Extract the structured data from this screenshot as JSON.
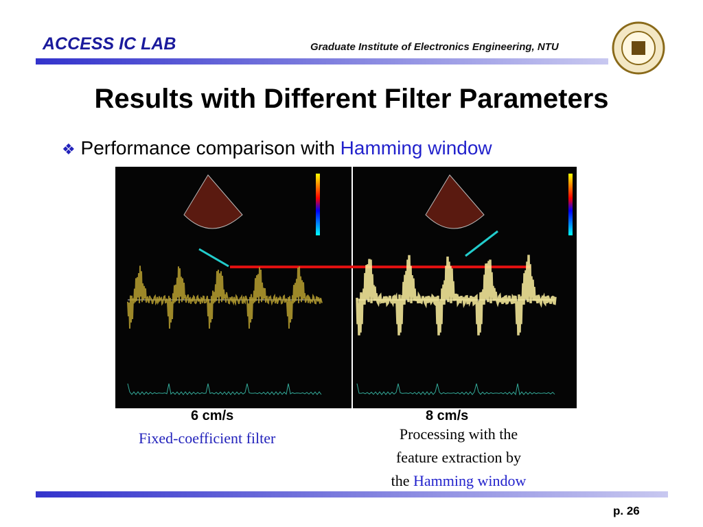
{
  "header": {
    "lab": "ACCESS IC LAB",
    "institute": "Graduate Institute of Electronics Engineering, NTU"
  },
  "title": "Results with Different Filter Parameters",
  "bullet": {
    "text": "Performance comparison with",
    "highlight": "Hamming window"
  },
  "images": [
    {
      "speed": "6 cm/s",
      "caption": "Fixed-coefficient filter"
    },
    {
      "speed": "8 cm/s",
      "caption_lines": [
        "Processing with the",
        "feature extraction by",
        "the"
      ],
      "caption_highlight": "Hamming window"
    }
  ],
  "footer": {
    "page": "p. 26"
  }
}
